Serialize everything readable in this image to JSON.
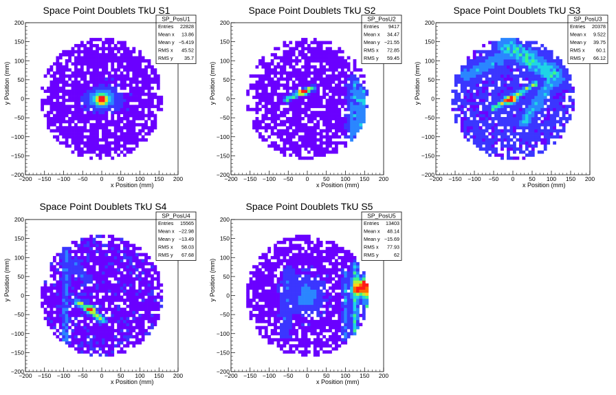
{
  "page_title": "Space Point Doublets TkU",
  "colors": {
    "background": "#ffffff",
    "empty_bin": "#ffffff",
    "palette": [
      "#6a00ff",
      "#3b36ff",
      "#2a86ff",
      "#1fd4e6",
      "#3df58a",
      "#b6f23a",
      "#ffd21a",
      "#ff6a00",
      "#ff1a1a"
    ]
  },
  "chart_data": [
    {
      "type": "heatmap",
      "title": "Space Point Doublets TkU S1",
      "xlabel": "x Position (mm)",
      "ylabel": "y Position (mm)",
      "xlim": [
        -200,
        200
      ],
      "ylim": [
        -200,
        200
      ],
      "x_ticks": [
        "−200",
        "−150",
        "−100",
        "−50",
        "0",
        "50",
        "100",
        "150",
        "200"
      ],
      "y_ticks": [
        "−200",
        "−150",
        "−100",
        "−50",
        "0",
        "50",
        "100",
        "150",
        "200"
      ],
      "grid": false,
      "legend": "top-right",
      "stats": {
        "name": "SP_PosU1",
        "rows": [
          [
            "Entries",
            "22828"
          ],
          [
            "Mean x",
            "13.86"
          ],
          [
            "Mean y",
            "−5.419"
          ],
          [
            "RMS x",
            "45.52"
          ],
          [
            "RMS y",
            "35.7"
          ]
        ]
      },
      "pattern": {
        "detector_radius": 160,
        "bg": 0.06,
        "hole_density": 0.14,
        "blobs": [
          {
            "x": 0,
            "y": -3,
            "sx": 9,
            "sy": 8,
            "amp": 0.95
          },
          {
            "x": 3,
            "y": 0,
            "sx": 26,
            "sy": 18,
            "amp": 0.3
          }
        ],
        "lines": []
      }
    },
    {
      "type": "heatmap",
      "title": "Space Point Doublets TkU S2",
      "xlabel": "x Position (mm)",
      "ylabel": "y Position (mm)",
      "xlim": [
        -200,
        200
      ],
      "ylim": [
        -200,
        200
      ],
      "x_ticks": [
        "−200",
        "−150",
        "−100",
        "−50",
        "0",
        "50",
        "100",
        "150",
        "200"
      ],
      "y_ticks": [
        "−200",
        "−150",
        "−100",
        "−50",
        "0",
        "50",
        "100",
        "150",
        "200"
      ],
      "grid": false,
      "legend": "top-right",
      "stats": {
        "name": "SP_PosU2",
        "rows": [
          [
            "Entries",
            "9417"
          ],
          [
            "Mean x",
            "34.47"
          ],
          [
            "Mean y",
            "−21.55"
          ],
          [
            "RMS x",
            "72.85"
          ],
          [
            "RMS y",
            "59.45"
          ]
        ]
      },
      "pattern": {
        "detector_radius": 160,
        "bg": 0.05,
        "hole_density": 0.2,
        "blobs": [
          {
            "x": -10,
            "y": 18,
            "sx": 10,
            "sy": 5,
            "amp": 0.75
          }
        ],
        "lines": [
          {
            "x1": -55,
            "y1": -2,
            "x2": 15,
            "y2": 30,
            "w": 4,
            "amp": 0.45
          },
          {
            "x1": 125,
            "y1": -120,
            "x2": 125,
            "y2": 40,
            "w": 12,
            "amp": 0.22
          },
          {
            "x1": 145,
            "y1": -120,
            "x2": 145,
            "y2": 20,
            "w": 6,
            "amp": 0.2
          }
        ]
      }
    },
    {
      "type": "heatmap",
      "title": "Space Point Doublets TkU S3",
      "xlabel": "x Position (mm)",
      "ylabel": "y Position (mm)",
      "xlim": [
        -200,
        200
      ],
      "ylim": [
        -200,
        200
      ],
      "x_ticks": [
        "−200",
        "−150",
        "−100",
        "−50",
        "0",
        "50",
        "100",
        "150",
        "200"
      ],
      "y_ticks": [
        "−200",
        "−150",
        "−100",
        "−50",
        "0",
        "50",
        "100",
        "150",
        "200"
      ],
      "grid": false,
      "legend": "top-right",
      "stats": {
        "name": "SP_PosU3",
        "rows": [
          [
            "Entries",
            "20378"
          ],
          [
            "Mean x",
            "9.522"
          ],
          [
            "Mean y",
            "39.75"
          ],
          [
            "RMS x",
            "60.1"
          ],
          [
            "RMS y",
            "66.12"
          ]
        ]
      },
      "pattern": {
        "detector_radius": 160,
        "bg": 0.1,
        "hole_density": 0.15,
        "blobs": [
          {
            "x": -5,
            "y": -3,
            "sx": 10,
            "sy": 6,
            "amp": 0.85
          }
        ],
        "lines": [
          {
            "x1": -50,
            "y1": -25,
            "x2": 60,
            "y2": 40,
            "w": 5,
            "amp": 0.4
          },
          {
            "x1": -10,
            "y1": 140,
            "x2": 110,
            "y2": 60,
            "w": 16,
            "amp": 0.28
          },
          {
            "x1": 30,
            "y1": -60,
            "x2": 90,
            "y2": 30,
            "w": 10,
            "amp": 0.22
          },
          {
            "x1": -120,
            "y1": 60,
            "x2": -30,
            "y2": 110,
            "w": 12,
            "amp": 0.18
          }
        ]
      }
    },
    {
      "type": "heatmap",
      "title": "Space Point Doublets TkU S4",
      "xlabel": "x Position (mm)",
      "ylabel": "y Position (mm)",
      "xlim": [
        -200,
        200
      ],
      "ylim": [
        -200,
        200
      ],
      "x_ticks": [
        "−200",
        "−150",
        "−100",
        "−50",
        "0",
        "50",
        "100",
        "150",
        "200"
      ],
      "y_ticks": [
        "−200",
        "−150",
        "−100",
        "−50",
        "0",
        "50",
        "100",
        "150",
        "200"
      ],
      "grid": false,
      "legend": "top-right",
      "stats": {
        "name": "SP_PosU4",
        "rows": [
          [
            "Entries",
            "15565"
          ],
          [
            "Mean x",
            "−22.98"
          ],
          [
            "Mean y",
            "−13.49"
          ],
          [
            "RMS x",
            "58.03"
          ],
          [
            "RMS y",
            "67.68"
          ]
        ]
      },
      "pattern": {
        "detector_radius": 160,
        "bg": 0.07,
        "hole_density": 0.12,
        "blobs": [
          {
            "x": -30,
            "y": -35,
            "sx": 8,
            "sy": 5,
            "amp": 0.9
          }
        ],
        "lines": [
          {
            "x1": -65,
            "y1": -15,
            "x2": 5,
            "y2": -65,
            "w": 5,
            "amp": 0.45
          },
          {
            "x1": -95,
            "y1": -120,
            "x2": -95,
            "y2": 120,
            "w": 5,
            "amp": 0.18
          },
          {
            "x1": -70,
            "y1": 80,
            "x2": -40,
            "y2": 40,
            "w": 8,
            "amp": 0.12
          }
        ]
      }
    },
    {
      "type": "heatmap",
      "title": "Space Point Doublets TkU S5",
      "xlabel": "x Position (mm)",
      "ylabel": "y Position (mm)",
      "xlim": [
        -200,
        200
      ],
      "ylim": [
        -200,
        200
      ],
      "x_ticks": [
        "−200",
        "−150",
        "−100",
        "−50",
        "0",
        "50",
        "100",
        "150",
        "200"
      ],
      "y_ticks": [
        "−200",
        "−150",
        "−100",
        "−50",
        "0",
        "50",
        "100",
        "150",
        "200"
      ],
      "grid": false,
      "legend": "top-right",
      "stats": {
        "name": "SP_PosU5",
        "rows": [
          [
            "Entries",
            "13403"
          ],
          [
            "Mean x",
            "48.14"
          ],
          [
            "Mean y",
            "−15.69"
          ],
          [
            "RMS x",
            "77.93"
          ],
          [
            "RMS y",
            "62"
          ]
        ]
      },
      "pattern": {
        "detector_radius": 160,
        "bg": 0.06,
        "hole_density": 0.16,
        "blobs": [
          {
            "x": 140,
            "y": 20,
            "sx": 14,
            "sy": 14,
            "amp": 0.8
          },
          {
            "x": 150,
            "y": 35,
            "sx": 6,
            "sy": 6,
            "amp": 0.5
          },
          {
            "x": 0,
            "y": 0,
            "sx": 25,
            "sy": 30,
            "amp": 0.2
          }
        ],
        "lines": [
          {
            "x1": 125,
            "y1": -100,
            "x2": 125,
            "y2": 80,
            "w": 6,
            "amp": 0.3
          },
          {
            "x1": 100,
            "y1": -110,
            "x2": 100,
            "y2": 60,
            "w": 5,
            "amp": 0.18
          },
          {
            "x1": 155,
            "y1": -60,
            "x2": 155,
            "y2": 60,
            "w": 5,
            "amp": 0.35
          },
          {
            "x1": -60,
            "y1": -90,
            "x2": -50,
            "y2": 60,
            "w": 10,
            "amp": 0.1
          }
        ]
      }
    }
  ]
}
